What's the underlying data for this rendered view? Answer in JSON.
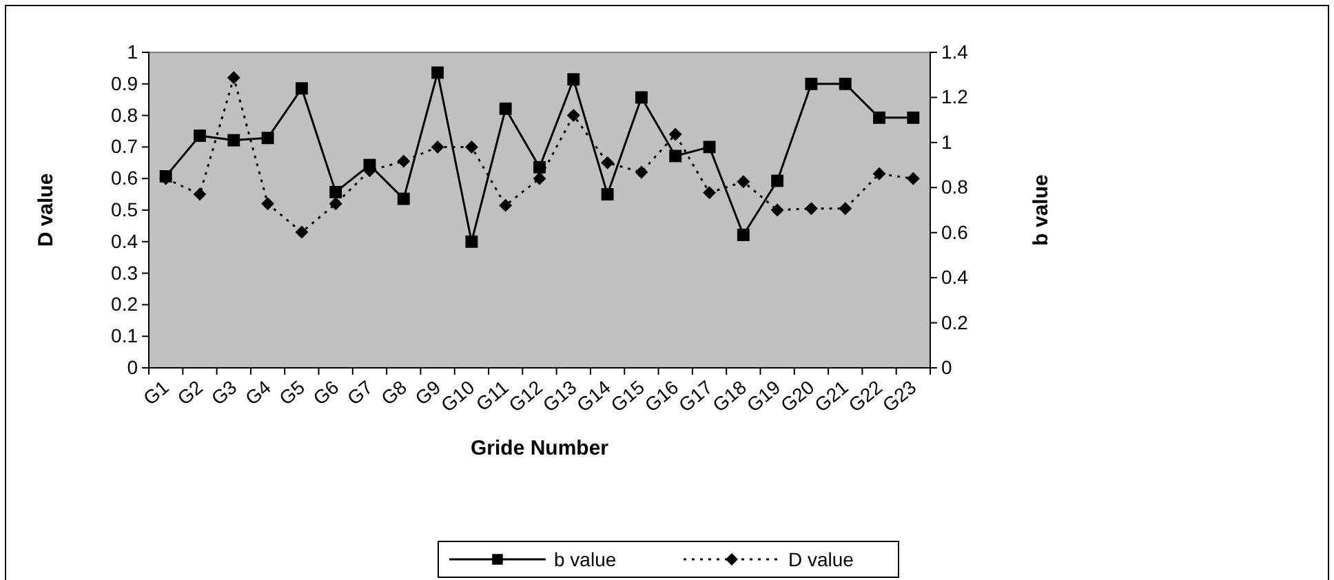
{
  "chart_data": {
    "type": "line",
    "xlabel": "Gride Number",
    "ylabel": "D value",
    "y2label": "b value",
    "categories": [
      "G1",
      "G2",
      "G3",
      "G4",
      "G5",
      "G6",
      "G7",
      "G8",
      "G9",
      "G10",
      "G11",
      "G12",
      "G13",
      "G14",
      "G15",
      "G16",
      "G17",
      "G18",
      "G19",
      "G20",
      "G21",
      "G22",
      "G23"
    ],
    "series": [
      {
        "name": "b value",
        "color": "#000000",
        "axis": "y2",
        "marker": "square",
        "line_style": "solid",
        "values": [
          0.85,
          1.03,
          1.01,
          1.02,
          1.24,
          0.78,
          0.9,
          0.75,
          1.31,
          0.56,
          1.15,
          0.89,
          1.28,
          0.77,
          1.2,
          0.94,
          0.98,
          0.59,
          0.83,
          1.26,
          1.26,
          1.11,
          1.11
        ]
      },
      {
        "name": "D value",
        "color": "#000000",
        "marker": "diamond",
        "line_style": "dotted",
        "values": [
          0.6,
          0.55,
          0.92,
          0.52,
          0.43,
          0.52,
          0.625,
          0.655,
          0.7,
          0.7,
          0.515,
          0.6,
          0.8,
          0.65,
          0.62,
          0.74,
          0.555,
          0.59,
          0.5,
          0.505,
          0.505,
          0.615,
          0.6
        ]
      }
    ],
    "ylim": [
      0,
      1
    ],
    "yticks": [
      0,
      0.1,
      0.2,
      0.3,
      0.4,
      0.5,
      0.6,
      0.7,
      0.8,
      0.9,
      1
    ],
    "y2lim": [
      0,
      1.4
    ],
    "y2ticks": [
      0,
      0.2,
      0.4,
      0.6,
      0.8,
      1,
      1.2,
      1.4
    ],
    "grid": false,
    "legend": "bottom"
  }
}
